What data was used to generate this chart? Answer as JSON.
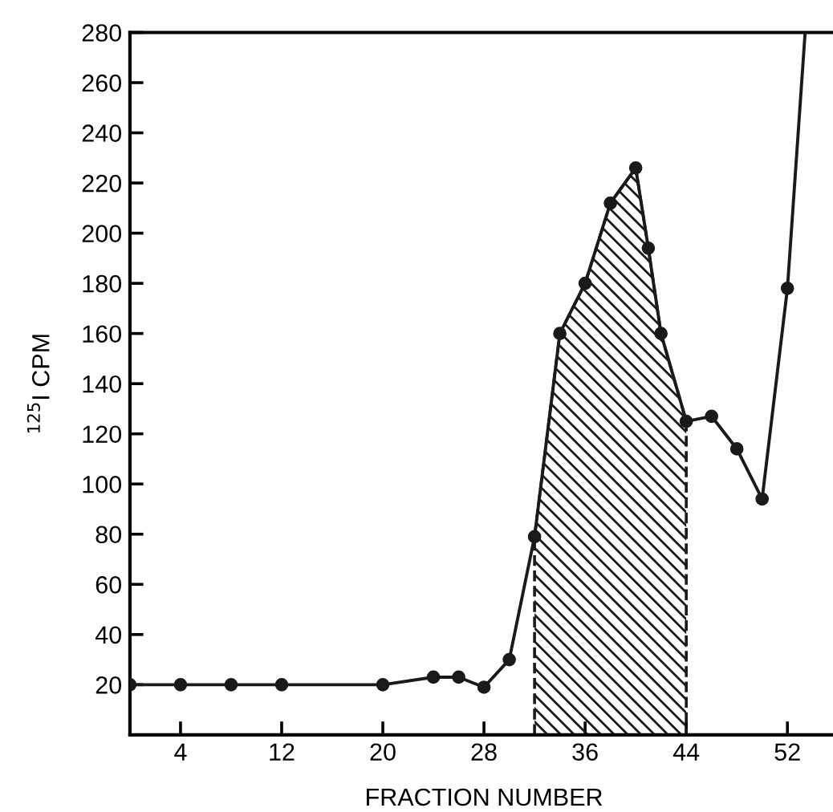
{
  "chart_data": {
    "type": "line",
    "xlabel": "FRACTION NUMBER",
    "ylabel": "$^{125}$I CPM",
    "xlim": [
      0,
      56
    ],
    "ylim": [
      0,
      280
    ],
    "xticks": [
      4,
      12,
      20,
      28,
      36,
      44,
      52
    ],
    "yticks": [
      20,
      40,
      60,
      80,
      100,
      120,
      140,
      160,
      180,
      200,
      220,
      240,
      260,
      280
    ],
    "grid": false,
    "legend": false,
    "marker": "circle",
    "line_style": "solid",
    "series": [
      {
        "color": "#1a1a1a",
        "x": [
          0,
          4,
          8,
          12,
          20,
          24,
          26,
          28,
          30,
          32,
          34,
          36,
          38,
          40,
          41,
          42,
          44,
          46,
          48,
          50,
          52
        ],
        "values": [
          20,
          20,
          20,
          20,
          20,
          23,
          23,
          19,
          30,
          79,
          160,
          180,
          212,
          226,
          194,
          160,
          125,
          127,
          114,
          94,
          178
        ]
      },
      {
        "type": "line",
        "marker": "none",
        "color": "#1a1a1a",
        "x": [
          52,
          53.4
        ],
        "values": [
          178,
          280
        ]
      },
      {
        "type": "area",
        "marker": "none",
        "color": "#1a1a1a",
        "x": [
          32,
          34,
          36,
          38,
          40,
          41,
          42,
          44
        ],
        "values": [
          79,
          160,
          180,
          212,
          226,
          194,
          160,
          125
        ]
      }
    ]
  }
}
